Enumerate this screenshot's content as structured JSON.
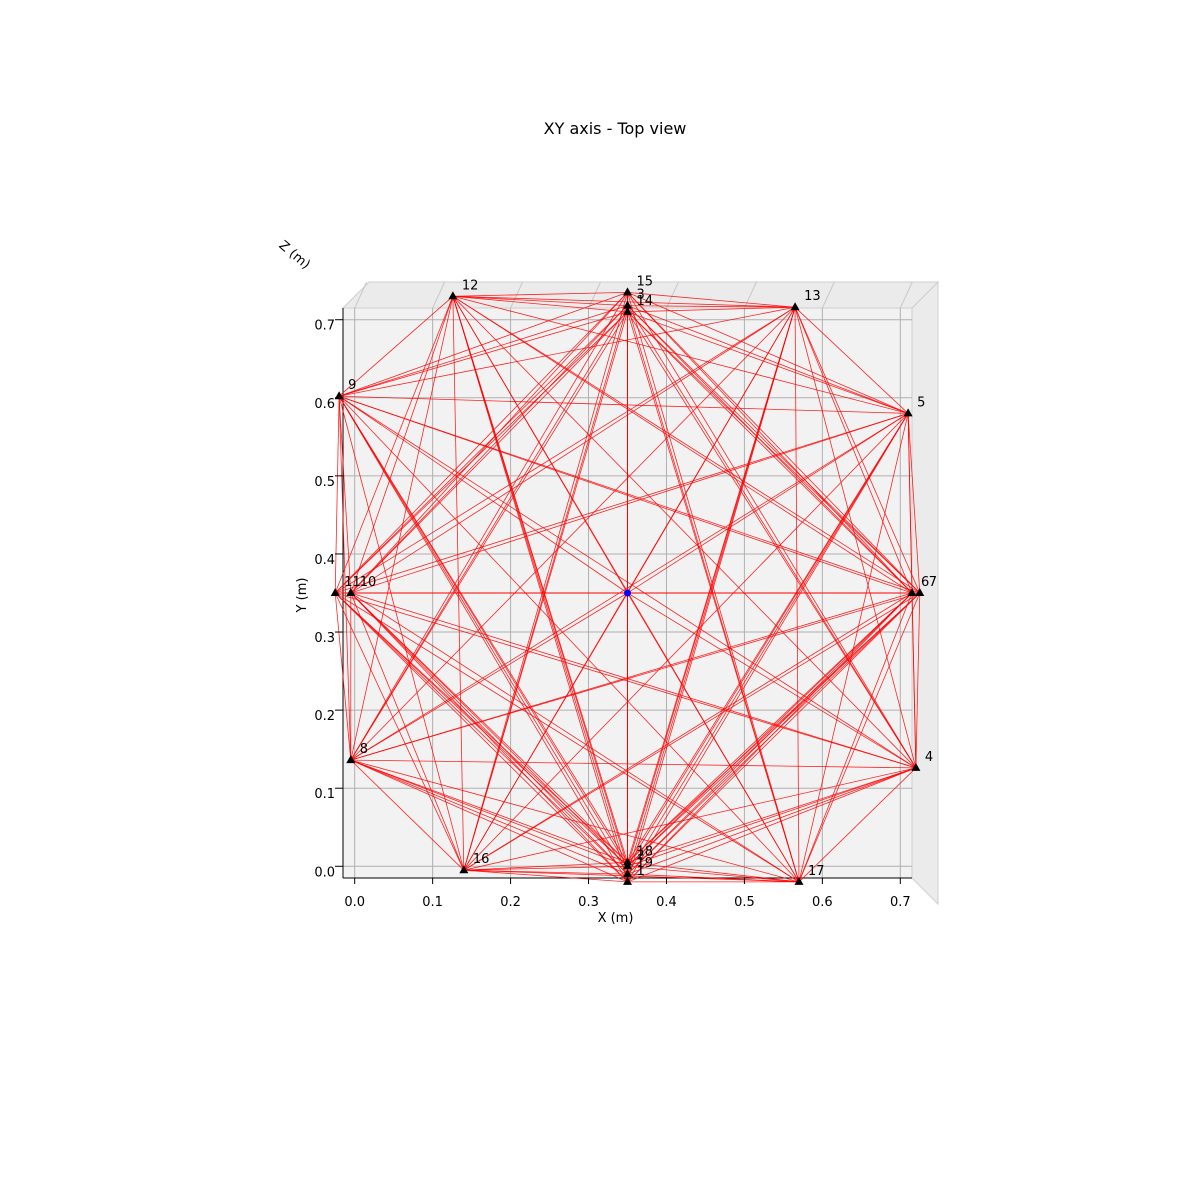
{
  "chart_data": {
    "type": "scatter",
    "title": "XY axis - Top view",
    "xlabel": "X (m)",
    "ylabel": "Y (m)",
    "zlabel": "Z (m)",
    "xlim": [
      -0.015,
      0.715
    ],
    "ylim": [
      -0.015,
      0.715
    ],
    "x_ticks": [
      "0.0",
      "0.1",
      "0.2",
      "0.3",
      "0.4",
      "0.5",
      "0.6",
      "0.7"
    ],
    "y_ticks": [
      "0.0",
      "0.1",
      "0.2",
      "0.3",
      "0.4",
      "0.5",
      "0.6",
      "0.7"
    ],
    "grid": true,
    "view": "top",
    "center_point": {
      "x": 0.35,
      "y": 0.35,
      "color": "#0000ff"
    },
    "line_color": "#ff0000",
    "node_color": "#000000",
    "nodes": [
      {
        "label": "1",
        "x": 0.35,
        "y": -0.02
      },
      {
        "label": "2",
        "x": 0.35,
        "y": 0.0
      },
      {
        "label": "3",
        "x": 0.35,
        "y": 0.718
      },
      {
        "label": "4",
        "x": 0.72,
        "y": 0.126
      },
      {
        "label": "5",
        "x": 0.71,
        "y": 0.58
      },
      {
        "label": "6",
        "x": 0.715,
        "y": 0.35
      },
      {
        "label": "7",
        "x": 0.725,
        "y": 0.35
      },
      {
        "label": "8",
        "x": -0.005,
        "y": 0.136
      },
      {
        "label": "9",
        "x": -0.02,
        "y": 0.602
      },
      {
        "label": "10",
        "x": -0.005,
        "y": 0.35
      },
      {
        "label": "11",
        "x": -0.025,
        "y": 0.35
      },
      {
        "label": "12",
        "x": 0.126,
        "y": 0.73
      },
      {
        "label": "13",
        "x": 0.565,
        "y": 0.716
      },
      {
        "label": "14",
        "x": 0.35,
        "y": 0.71
      },
      {
        "label": "15",
        "x": 0.35,
        "y": 0.735
      },
      {
        "label": "16",
        "x": 0.14,
        "y": -0.005
      },
      {
        "label": "17",
        "x": 0.57,
        "y": -0.02
      },
      {
        "label": "18",
        "x": 0.35,
        "y": 0.005
      },
      {
        "label": "19",
        "x": 0.35,
        "y": -0.01
      }
    ]
  }
}
